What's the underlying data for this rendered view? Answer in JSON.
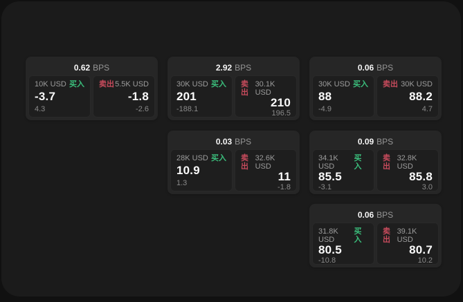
{
  "window": {
    "background": "#111111",
    "surface": "#1b1b1b"
  },
  "labels": {
    "buy": "买入",
    "sell": "卖出",
    "bps_unit": "BPS"
  },
  "colors": {
    "buy_accent": "#3bbf7c",
    "sell_accent": "#c74b5c",
    "card_bg": "#262626",
    "cell_bg": "#1e1e1e",
    "primary_text": "#fafafa",
    "secondary_text": "#9c9c9c"
  },
  "cards": [
    {
      "bps": "0.62",
      "buy": {
        "size": "10K USD",
        "price": "-3.7",
        "delta": "4.3"
      },
      "sell": {
        "size": "5.5K USD",
        "price": "-1.8",
        "delta": "-2.6"
      }
    },
    {
      "bps": "2.92",
      "buy": {
        "size": "30K USD",
        "price": "201",
        "delta": "-188.1"
      },
      "sell": {
        "size": "30.1K USD",
        "price": "210",
        "delta": "196.5"
      }
    },
    {
      "bps": "0.06",
      "buy": {
        "size": "30K USD",
        "price": "88",
        "delta": "-4.9"
      },
      "sell": {
        "size": "30K USD",
        "price": "88.2",
        "delta": "4.7"
      }
    },
    {
      "bps": "0.03",
      "buy": {
        "size": "28K USD",
        "price": "10.9",
        "delta": "1.3"
      },
      "sell": {
        "size": "32.6K USD",
        "price": "11",
        "delta": "-1.8"
      }
    },
    {
      "bps": "0.09",
      "buy": {
        "size": "34.1K USD",
        "price": "85.5",
        "delta": "-3.1"
      },
      "sell": {
        "size": "32.8K USD",
        "price": "85.8",
        "delta": "3.0"
      }
    },
    {
      "bps": "0.06",
      "buy": {
        "size": "31.8K USD",
        "price": "80.5",
        "delta": "-10.8"
      },
      "sell": {
        "size": "39.1K USD",
        "price": "80.7",
        "delta": "10.2"
      }
    }
  ]
}
